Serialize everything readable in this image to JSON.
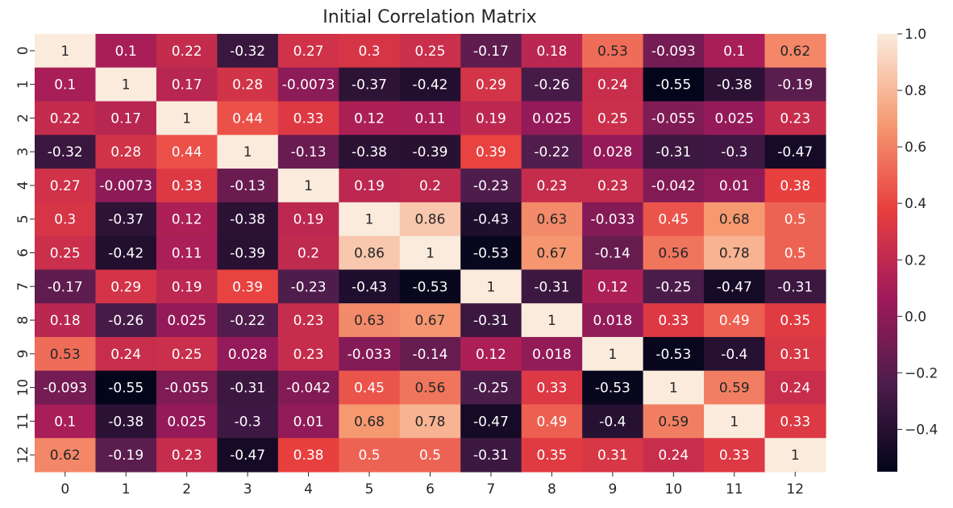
{
  "chart_data": {
    "type": "heatmap",
    "title": "Initial Correlation Matrix",
    "x_labels": [
      "0",
      "1",
      "2",
      "3",
      "4",
      "5",
      "6",
      "7",
      "8",
      "9",
      "10",
      "11",
      "12"
    ],
    "y_labels": [
      "0",
      "1",
      "2",
      "3",
      "4",
      "5",
      "6",
      "7",
      "8",
      "9",
      "10",
      "11",
      "12"
    ],
    "values": [
      [
        1,
        0.1,
        0.22,
        -0.32,
        0.27,
        0.3,
        0.25,
        -0.17,
        0.18,
        0.53,
        -0.093,
        0.1,
        0.62
      ],
      [
        0.1,
        1,
        0.17,
        0.28,
        -0.0073,
        -0.37,
        -0.42,
        0.29,
        -0.26,
        0.24,
        -0.55,
        -0.38,
        -0.19
      ],
      [
        0.22,
        0.17,
        1,
        0.44,
        0.33,
        0.12,
        0.11,
        0.19,
        0.025,
        0.25,
        -0.055,
        0.025,
        0.23
      ],
      [
        -0.32,
        0.28,
        0.44,
        1,
        -0.13,
        -0.38,
        -0.39,
        0.39,
        -0.22,
        0.028,
        -0.31,
        -0.3,
        -0.47
      ],
      [
        0.27,
        -0.0073,
        0.33,
        -0.13,
        1,
        0.19,
        0.2,
        -0.23,
        0.23,
        0.23,
        -0.042,
        0.01,
        0.38
      ],
      [
        0.3,
        -0.37,
        0.12,
        -0.38,
        0.19,
        1,
        0.86,
        -0.43,
        0.63,
        -0.033,
        0.45,
        0.68,
        0.5
      ],
      [
        0.25,
        -0.42,
        0.11,
        -0.39,
        0.2,
        0.86,
        1,
        -0.53,
        0.67,
        -0.14,
        0.56,
        0.78,
        0.5
      ],
      [
        -0.17,
        0.29,
        0.19,
        0.39,
        -0.23,
        -0.43,
        -0.53,
        1,
        -0.31,
        0.12,
        -0.25,
        -0.47,
        -0.31
      ],
      [
        0.18,
        -0.26,
        0.025,
        -0.22,
        0.23,
        0.63,
        0.67,
        -0.31,
        1,
        0.018,
        0.33,
        0.49,
        0.35
      ],
      [
        0.53,
        0.24,
        0.25,
        0.028,
        0.23,
        -0.033,
        -0.14,
        0.12,
        0.018,
        1,
        -0.53,
        -0.4,
        0.31
      ],
      [
        -0.093,
        -0.55,
        -0.055,
        -0.31,
        -0.042,
        0.45,
        0.56,
        -0.25,
        0.33,
        -0.53,
        1,
        0.59,
        0.24
      ],
      [
        0.1,
        -0.38,
        0.025,
        -0.3,
        0.01,
        0.68,
        0.78,
        -0.47,
        0.49,
        -0.4,
        0.59,
        1,
        0.33
      ],
      [
        0.62,
        -0.19,
        0.23,
        -0.47,
        0.38,
        0.5,
        0.5,
        -0.31,
        0.35,
        0.31,
        0.24,
        0.33,
        1
      ]
    ],
    "value_labels": [
      [
        "1",
        "0.1",
        "0.22",
        "-0.32",
        "0.27",
        "0.3",
        "0.25",
        "-0.17",
        "0.18",
        "0.53",
        "-0.093",
        "0.1",
        "0.62"
      ],
      [
        "0.1",
        "1",
        "0.17",
        "0.28",
        "-0.0073",
        "-0.37",
        "-0.42",
        "0.29",
        "-0.26",
        "0.24",
        "-0.55",
        "-0.38",
        "-0.19"
      ],
      [
        "0.22",
        "0.17",
        "1",
        "0.44",
        "0.33",
        "0.12",
        "0.11",
        "0.19",
        "0.025",
        "0.25",
        "-0.055",
        "0.025",
        "0.23"
      ],
      [
        "-0.32",
        "0.28",
        "0.44",
        "1",
        "-0.13",
        "-0.38",
        "-0.39",
        "0.39",
        "-0.22",
        "0.028",
        "-0.31",
        "-0.3",
        "-0.47"
      ],
      [
        "0.27",
        "-0.0073",
        "0.33",
        "-0.13",
        "1",
        "0.19",
        "0.2",
        "-0.23",
        "0.23",
        "0.23",
        "-0.042",
        "0.01",
        "0.38"
      ],
      [
        "0.3",
        "-0.37",
        "0.12",
        "-0.38",
        "0.19",
        "1",
        "0.86",
        "-0.43",
        "0.63",
        "-0.033",
        "0.45",
        "0.68",
        "0.5"
      ],
      [
        "0.25",
        "-0.42",
        "0.11",
        "-0.39",
        "0.2",
        "0.86",
        "1",
        "-0.53",
        "0.67",
        "-0.14",
        "0.56",
        "0.78",
        "0.5"
      ],
      [
        "-0.17",
        "0.29",
        "0.19",
        "0.39",
        "-0.23",
        "-0.43",
        "-0.53",
        "1",
        "-0.31",
        "0.12",
        "-0.25",
        "-0.47",
        "-0.31"
      ],
      [
        "0.18",
        "-0.26",
        "0.025",
        "-0.22",
        "0.23",
        "0.63",
        "0.67",
        "-0.31",
        "1",
        "0.018",
        "0.33",
        "0.49",
        "0.35"
      ],
      [
        "0.53",
        "0.24",
        "0.25",
        "0.028",
        "0.23",
        "-0.033",
        "-0.14",
        "0.12",
        "0.018",
        "1",
        "-0.53",
        "-0.4",
        "0.31"
      ],
      [
        "-0.093",
        "-0.55",
        "-0.055",
        "-0.31",
        "-0.042",
        "0.45",
        "0.56",
        "-0.25",
        "0.33",
        "-0.53",
        "1",
        "0.59",
        "0.24"
      ],
      [
        "0.1",
        "-0.38",
        "0.025",
        "-0.3",
        "0.01",
        "0.68",
        "0.78",
        "-0.47",
        "0.49",
        "-0.4",
        "0.59",
        "1",
        "0.33"
      ],
      [
        "0.62",
        "-0.19",
        "0.23",
        "-0.47",
        "0.38",
        "0.5",
        "0.5",
        "-0.31",
        "0.35",
        "0.31",
        "0.24",
        "0.33",
        "1"
      ]
    ],
    "colorbar": {
      "vmin": -0.55,
      "vmax": 1.0,
      "ticks": [
        1.0,
        0.8,
        0.6,
        0.4,
        0.2,
        0.0,
        -0.2,
        -0.4
      ],
      "tick_labels": [
        "1.0",
        "0.8",
        "0.6",
        "0.4",
        "0.2",
        "0.0",
        "−0.2",
        "−0.4"
      ]
    },
    "colormap": "rocket",
    "colormap_stops": [
      "#03051a",
      "#4c1d4b",
      "#a11a5b",
      "#e83f3f",
      "#f69c73",
      "#faebdd"
    ],
    "grid": false
  }
}
